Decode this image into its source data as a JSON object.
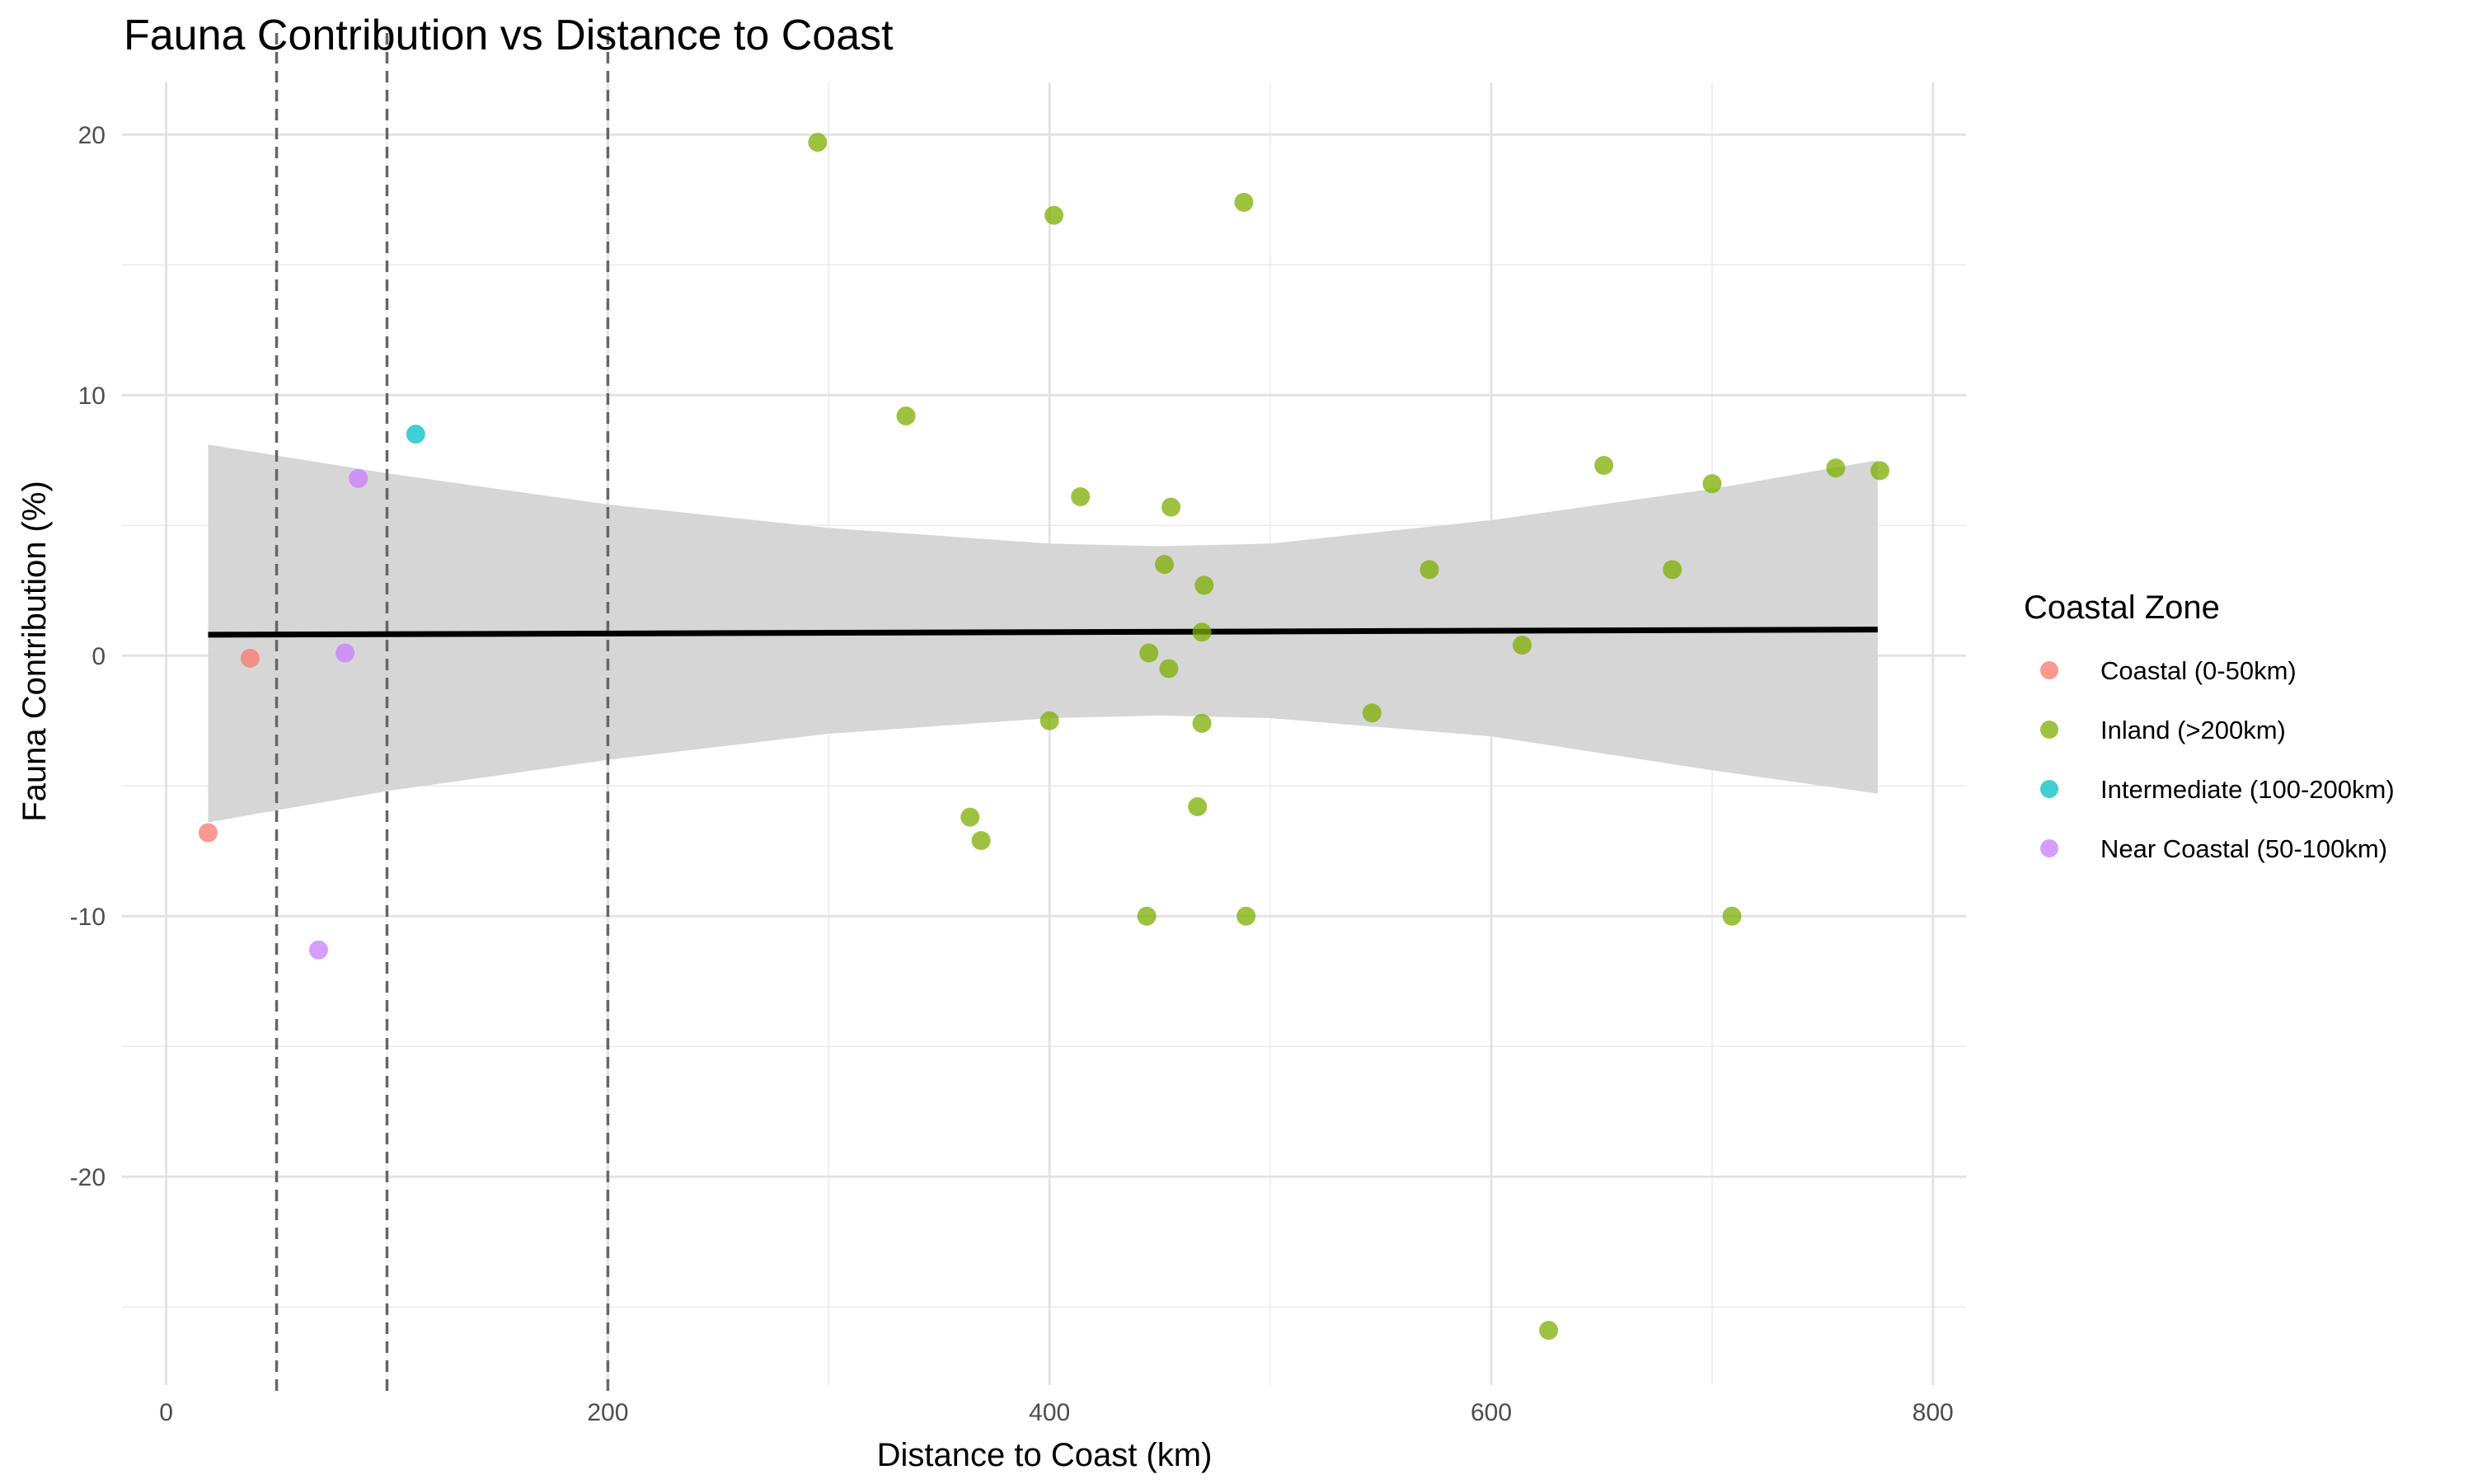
{
  "chart_data": {
    "type": "scatter",
    "title": "Fauna Contribution vs Distance to Coast",
    "xlabel": "Distance to Coast (km)",
    "ylabel": "Fauna Contribution (%)",
    "xlim": [
      -20,
      815
    ],
    "ylim": [
      -28,
      22
    ],
    "x_ticks": [
      0,
      200,
      400,
      600,
      800
    ],
    "y_ticks": [
      -20,
      -10,
      0,
      10,
      20
    ],
    "x_tick_labels": [
      "0",
      "200",
      "400",
      "600",
      "800"
    ],
    "y_tick_labels": [
      "-20",
      "-10",
      "0",
      "10",
      "20"
    ],
    "grid": true,
    "vertical_reference_lines": [
      50,
      100,
      200
    ],
    "legend": {
      "title": "Coastal Zone",
      "position": "right",
      "entries": [
        {
          "name": "Coastal (0-50km)",
          "color": "#F8766D"
        },
        {
          "name": "Inland (>200km)",
          "color": "#7CAE00"
        },
        {
          "name": "Intermediate (100-200km)",
          "color": "#00BFC4"
        },
        {
          "name": "Near Coastal (50-100km)",
          "color": "#C77CFF"
        }
      ]
    },
    "trend_line": {
      "x": [
        19,
        775
      ],
      "y": [
        0.8,
        1.0
      ],
      "color": "#000000"
    },
    "confidence_band": {
      "x": [
        19,
        100,
        200,
        300,
        400,
        450,
        500,
        600,
        700,
        775
      ],
      "upper": [
        8.1,
        7.0,
        5.8,
        4.9,
        4.3,
        4.2,
        4.3,
        5.2,
        6.4,
        7.5
      ],
      "lower": [
        -6.4,
        -5.2,
        -4.0,
        -3.0,
        -2.4,
        -2.3,
        -2.4,
        -3.1,
        -4.4,
        -5.3
      ],
      "color": "#d4d4d4"
    },
    "series": [
      {
        "name": "Coastal (0-50km)",
        "color": "#F8766D",
        "points": [
          [
            19,
            -6.8
          ],
          [
            38,
            -0.1
          ]
        ]
      },
      {
        "name": "Inland (>200km)",
        "color": "#7CAE00",
        "points": [
          [
            295,
            19.7
          ],
          [
            402,
            16.9
          ],
          [
            488,
            17.4
          ],
          [
            335,
            9.2
          ],
          [
            414,
            6.1
          ],
          [
            455,
            5.7
          ],
          [
            452,
            3.5
          ],
          [
            470,
            2.7
          ],
          [
            469,
            0.9
          ],
          [
            445,
            0.1
          ],
          [
            454,
            -0.5
          ],
          [
            400,
            -2.5
          ],
          [
            469,
            -2.6
          ],
          [
            546,
            -2.2
          ],
          [
            572,
            3.3
          ],
          [
            614,
            0.4
          ],
          [
            651,
            7.3
          ],
          [
            682,
            3.3
          ],
          [
            700,
            6.6
          ],
          [
            756,
            7.2
          ],
          [
            776,
            7.1
          ],
          [
            364,
            -6.2
          ],
          [
            369,
            -7.1
          ],
          [
            467,
            -5.8
          ],
          [
            444,
            -10.0
          ],
          [
            489,
            -10.0
          ],
          [
            709,
            -10.0
          ],
          [
            626,
            -25.9
          ]
        ]
      },
      {
        "name": "Intermediate (100-200km)",
        "color": "#00BFC4",
        "points": [
          [
            113,
            8.5
          ]
        ]
      },
      {
        "name": "Near Coastal (50-100km)",
        "color": "#C77CFF",
        "points": [
          [
            87,
            6.8
          ],
          [
            81,
            0.1
          ],
          [
            69,
            -11.3
          ]
        ]
      }
    ]
  }
}
